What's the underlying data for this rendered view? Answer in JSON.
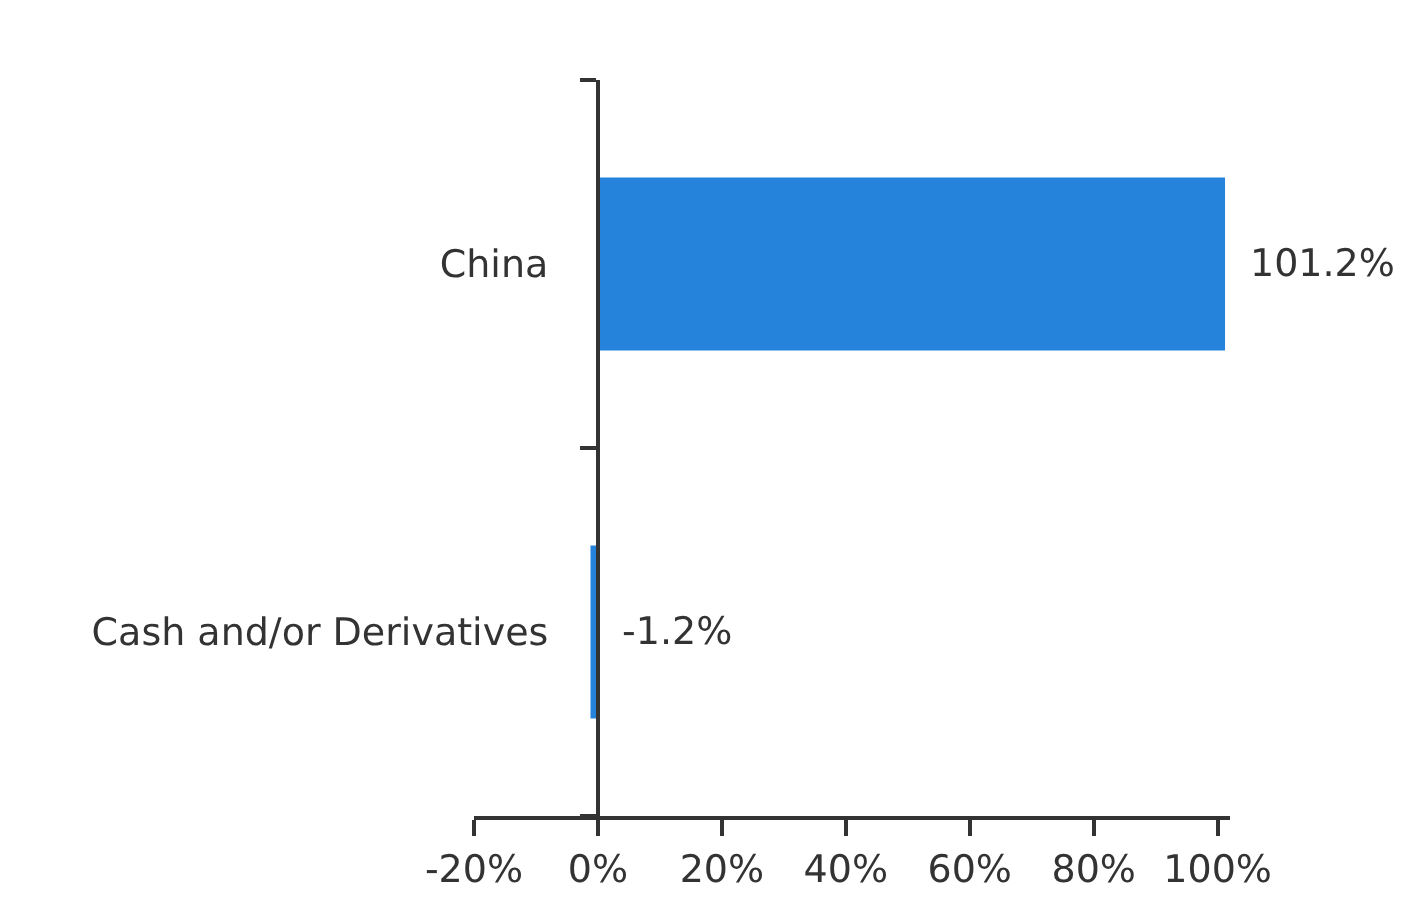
{
  "chart_data": {
    "type": "bar",
    "orientation": "horizontal",
    "categories": [
      "China",
      "Cash and/or Derivatives"
    ],
    "values": [
      101.2,
      -1.2
    ],
    "value_labels": [
      "101.2%",
      "-1.2%"
    ],
    "color": "#2683dc",
    "xlim": [
      -20,
      102
    ],
    "xticks": [
      {
        "value": -20,
        "label": "-20%"
      },
      {
        "value": 0,
        "label": "0%"
      },
      {
        "value": 20,
        "label": "20%"
      },
      {
        "value": 40,
        "label": "40%"
      },
      {
        "value": 60,
        "label": "60%"
      },
      {
        "value": 80,
        "label": "80%"
      },
      {
        "value": 100,
        "label": "100%"
      }
    ]
  }
}
